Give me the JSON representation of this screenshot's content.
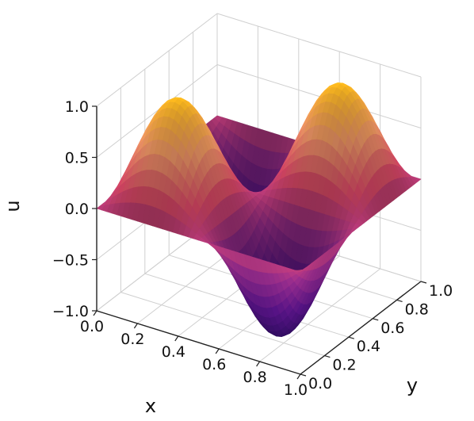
{
  "chart_data": {
    "type": "surface3d",
    "title": "",
    "xlabel": "x",
    "ylabel": "y",
    "zlabel": "u",
    "xlim": [
      0.0,
      1.0
    ],
    "ylim": [
      0.0,
      1.0
    ],
    "zlim": [
      -1.0,
      1.0
    ],
    "x_ticks": [
      "0.0",
      "0.2",
      "0.4",
      "0.6",
      "0.8",
      "1.0"
    ],
    "y_ticks": [
      "0.0",
      "0.2",
      "0.4",
      "0.6",
      "0.8",
      "1.0"
    ],
    "z_ticks": [
      "−1.0",
      "−0.5",
      "0.0",
      "0.5",
      "1.0"
    ],
    "x_tick_values": [
      0.0,
      0.2,
      0.4,
      0.6,
      0.8,
      1.0
    ],
    "y_tick_values": [
      0.0,
      0.2,
      0.4,
      0.6,
      0.8,
      1.0
    ],
    "z_tick_values": [
      -1.0,
      -0.5,
      0.0,
      0.5,
      1.0
    ],
    "surface_function": "u(x,y) = sin(2*pi*x) * sin(2*pi*y)",
    "sample_points": {
      "x": [
        0.25,
        0.75,
        0.25,
        0.75,
        0.5
      ],
      "y": [
        0.25,
        0.75,
        0.75,
        0.25,
        0.5
      ],
      "u": [
        1.0,
        1.0,
        -1.0,
        -1.0,
        0.0
      ]
    },
    "grid": true,
    "colormap": "inferno",
    "colors": {
      "low": "#3b0f70",
      "mid_low": "#8c2981",
      "mid": "#de4968",
      "mid_high": "#fe9f6d",
      "high": "#f8b61d",
      "grid": "#cfcfcf",
      "axis": "#222222"
    }
  }
}
